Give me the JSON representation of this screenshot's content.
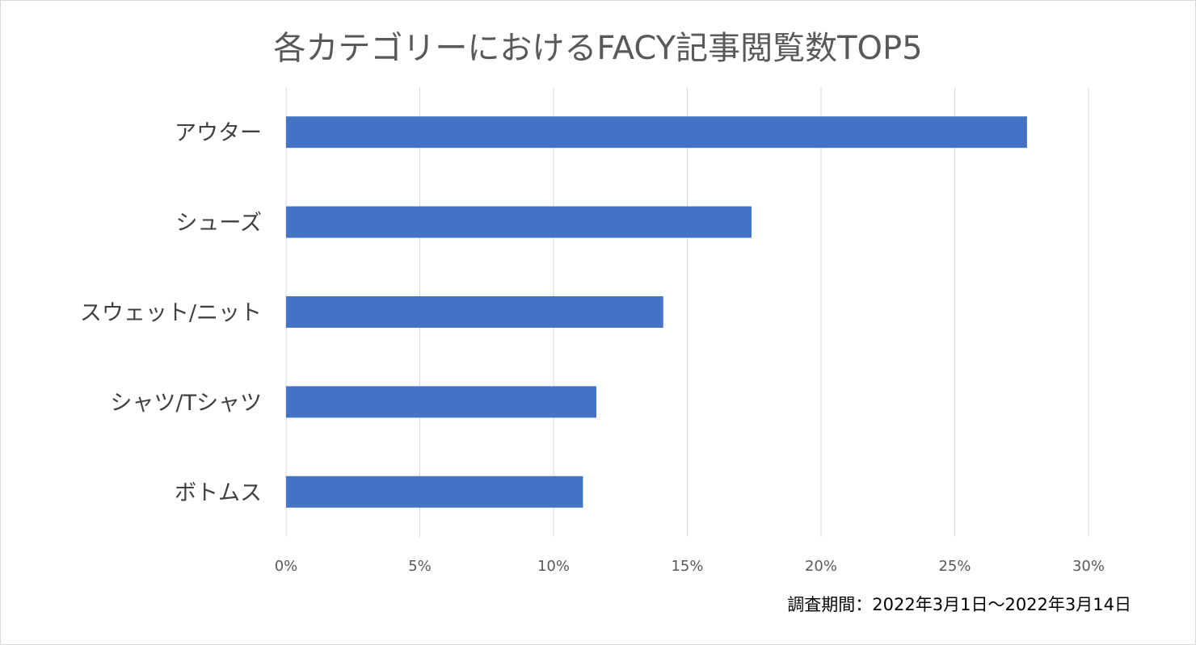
{
  "chart_data": {
    "type": "bar",
    "orientation": "horizontal",
    "title": "各カテゴリーにおけるFACY記事閲覧数TOP5",
    "categories": [
      "アウター",
      "シューズ",
      "スウェット/ニット",
      "シャツ/Tシャツ",
      "ボトムス"
    ],
    "values": [
      27.7,
      17.4,
      14.1,
      11.6,
      11.1
    ],
    "x_ticks": [
      0,
      5,
      10,
      15,
      20,
      25,
      30
    ],
    "x_tick_labels": [
      "0%",
      "5%",
      "10%",
      "15%",
      "20%",
      "25%",
      "30%"
    ],
    "xlim": [
      0,
      30
    ],
    "grid": true,
    "bar_color": "#4472C4",
    "grid_color": "#d9d9d9",
    "note": "調査期間：2022年3月1日～2022年3月14日"
  }
}
